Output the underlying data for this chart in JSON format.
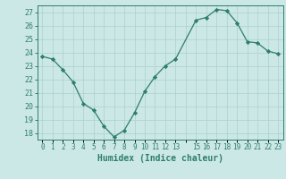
{
  "x": [
    0,
    1,
    2,
    3,
    4,
    5,
    6,
    7,
    8,
    9,
    10,
    11,
    12,
    13,
    15,
    16,
    17,
    18,
    19,
    20,
    21,
    22,
    23
  ],
  "y": [
    23.7,
    23.5,
    22.7,
    21.8,
    20.2,
    19.7,
    18.5,
    17.7,
    18.2,
    19.5,
    21.1,
    22.2,
    23.0,
    23.5,
    26.4,
    26.6,
    27.2,
    27.1,
    26.2,
    24.8,
    24.7,
    24.1,
    23.9
  ],
  "line_color": "#2e7d6e",
  "marker": "D",
  "marker_size": 2.2,
  "bg_color": "#cce8e6",
  "grid_color": "#afd4d0",
  "tick_color": "#2e7d6e",
  "xlabel": "Humidex (Indice chaleur)",
  "ylabel_ticks": [
    18,
    19,
    20,
    21,
    22,
    23,
    24,
    25,
    26,
    27
  ],
  "xtick_labels": [
    "0",
    "1",
    "2",
    "3",
    "4",
    "5",
    "6",
    "7",
    "8",
    "9",
    "10",
    "11",
    "12",
    "13",
    "",
    "15",
    "16",
    "17",
    "18",
    "19",
    "20",
    "21",
    "22",
    "23"
  ],
  "ylim": [
    17.5,
    27.5
  ],
  "xlim": [
    -0.5,
    23.5
  ],
  "figsize": [
    3.2,
    2.0
  ],
  "dpi": 100
}
